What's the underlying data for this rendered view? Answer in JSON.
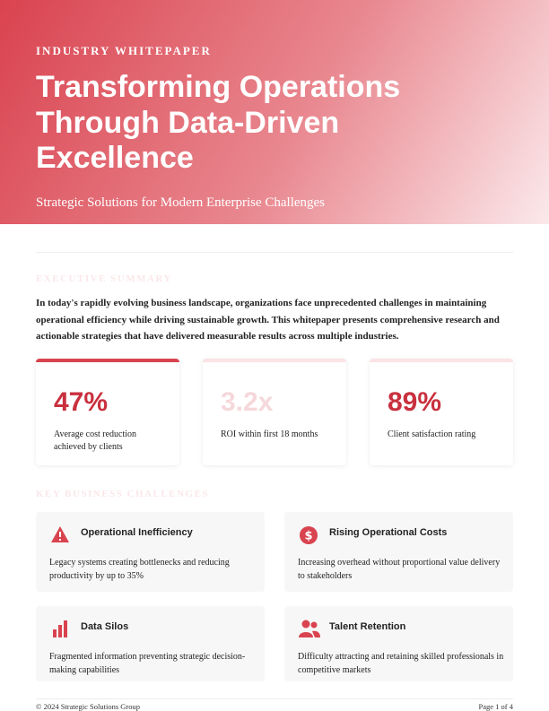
{
  "header": {
    "label": "INDUSTRY WHITEPAPER",
    "title_lines": [
      "Transforming Operations",
      "Through Data-Driven",
      "Excellence"
    ],
    "subtitle": "Strategic Solutions for Modern Enterprise Challenges"
  },
  "summary": {
    "heading": "EXECUTIVE SUMMARY",
    "text": "In today's rapidly evolving business landscape, organizations face unprecedented challenges in maintaining operational efficiency while driving sustainable growth. This whitepaper presents comprehensive research and actionable strategies that have delivered measurable results across multiple industries."
  },
  "stats": [
    {
      "value": "47%",
      "label": "Average cost reduction achieved by clients"
    },
    {
      "value": "3.2x",
      "label": "ROI within first 18 months"
    },
    {
      "value": "89%",
      "label": "Client satisfaction rating"
    }
  ],
  "challenges": {
    "heading": "KEY BUSINESS CHALLENGES",
    "items": [
      {
        "title": "Operational Inefficiency",
        "text": "Legacy systems creating bottlenecks and reducing productivity by up to 35%"
      },
      {
        "title": "Rising Operational Costs",
        "text": "Increasing overhead without proportional value delivery to stakeholders"
      },
      {
        "title": "Data Silos",
        "text": "Fragmented information preventing strategic decision-making capabilities"
      },
      {
        "title": "Talent Retention",
        "text": "Difficulty attracting and retaining skilled professionals in competitive markets"
      }
    ]
  },
  "footer": {
    "left": "© 2024 Strategic Solutions Group",
    "right": "Page 1 of 4"
  }
}
